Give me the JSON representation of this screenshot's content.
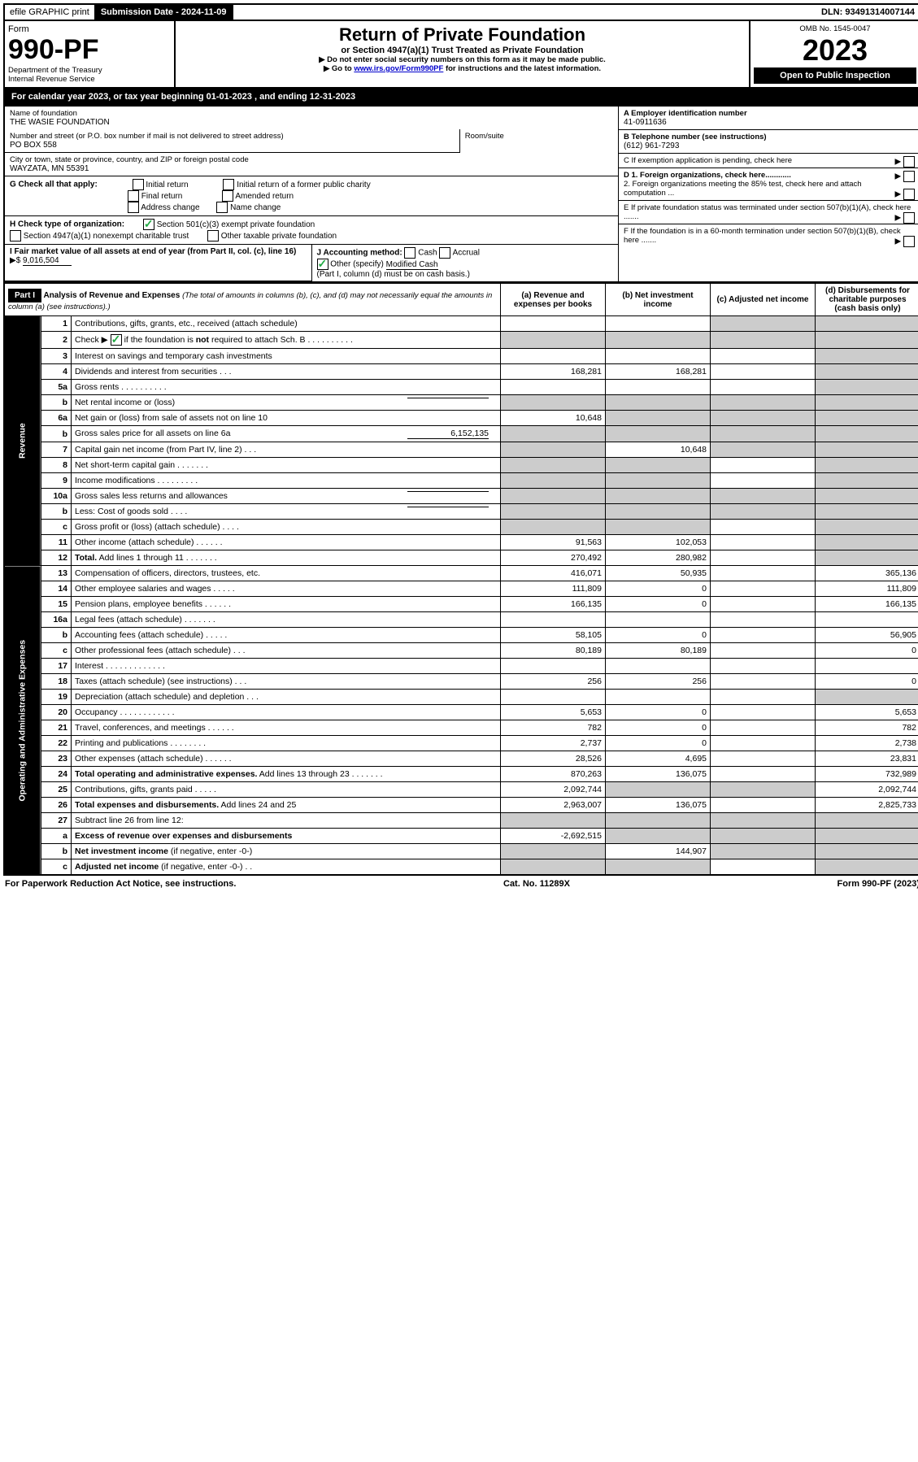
{
  "top": {
    "efile": "efile GRAPHIC print",
    "submission_label": "Submission Date - 2024-11-09",
    "dln": "DLN: 93491314007144"
  },
  "header": {
    "form_label": "Form",
    "form_number": "990-PF",
    "dept": "Department of the Treasury",
    "irs": "Internal Revenue Service",
    "title": "Return of Private Foundation",
    "subtitle": "or Section 4947(a)(1) Trust Treated as Private Foundation",
    "note1": "▶ Do not enter social security numbers on this form as it may be made public.",
    "note2_pre": "▶ Go to ",
    "note2_link": "www.irs.gov/Form990PF",
    "note2_post": " for instructions and the latest information.",
    "omb": "OMB No. 1545-0047",
    "year": "2023",
    "open": "Open to Public Inspection"
  },
  "calyear": "For calendar year 2023, or tax year beginning 01-01-2023               , and ending 12-31-2023",
  "foundation": {
    "name_label": "Name of foundation",
    "name": "THE WASIE FOUNDATION",
    "addr_label": "Number and street (or P.O. box number if mail is not delivered to street address)",
    "addr": "PO BOX 558",
    "room_label": "Room/suite",
    "city_label": "City or town, state or province, country, and ZIP or foreign postal code",
    "city": "WAYZATA, MN  55391"
  },
  "right_info": {
    "a_label": "A Employer identification number",
    "a_val": "41-0911636",
    "b_label": "B Telephone number (see instructions)",
    "b_val": "(612) 961-7293",
    "c_label": "C If exemption application is pending, check here",
    "d1": "D 1. Foreign organizations, check here............",
    "d2": "2. Foreign organizations meeting the 85% test, check here and attach computation ...",
    "e": "E  If private foundation status was terminated under section 507(b)(1)(A), check here .......",
    "f": "F  If the foundation is in a 60-month termination under section 507(b)(1)(B), check here .......",
    "arrow": "▶"
  },
  "g": {
    "label": "G Check all that apply:",
    "opts": [
      "Initial return",
      "Final return",
      "Address change",
      "Initial return of a former public charity",
      "Amended return",
      "Name change"
    ]
  },
  "h": {
    "label": "H Check type of organization:",
    "opt1": "Section 501(c)(3) exempt private foundation",
    "opt2": "Section 4947(a)(1) nonexempt charitable trust",
    "opt3": "Other taxable private foundation"
  },
  "i": {
    "label": "I Fair market value of all assets at end of year (from Part II, col. (c), line 16)",
    "arrow": "▶$",
    "val": "9,016,504"
  },
  "j": {
    "label": "J Accounting method:",
    "cash": "Cash",
    "accrual": "Accrual",
    "other": "Other (specify)",
    "other_val": "Modified Cash",
    "note": "(Part I, column (d) must be on cash basis.)"
  },
  "part1": {
    "label": "Part I",
    "title": "Analysis of Revenue and Expenses",
    "title_note": "(The total of amounts in columns (b), (c), and (d) may not necessarily equal the amounts in column (a) (see instructions).)",
    "col_a": "(a)   Revenue and expenses per books",
    "col_b": "(b)   Net investment income",
    "col_c": "(c)   Adjusted net income",
    "col_d": "(d)   Disbursements for charitable purposes (cash basis only)"
  },
  "side_rev": "Revenue",
  "side_exp": "Operating and Administrative Expenses",
  "rows": [
    {
      "n": "1",
      "d": "shade",
      "a": "",
      "b": "",
      "c": "shade"
    },
    {
      "n": "2",
      "d": "shade",
      "a": "shade",
      "b": "shade",
      "c": "shade",
      "checked": true
    },
    {
      "n": "3",
      "d": "shade",
      "a": "",
      "b": "",
      "c": ""
    },
    {
      "n": "4",
      "d": "shade",
      "a": "168,281",
      "b": "168,281",
      "c": ""
    },
    {
      "n": "5a",
      "d": "shade",
      "a": "",
      "b": "",
      "c": ""
    },
    {
      "n": "b",
      "d": "shade",
      "a": "shade",
      "b": "shade",
      "c": "shade",
      "inline": ""
    },
    {
      "n": "6a",
      "d": "shade",
      "a": "10,648",
      "b": "shade",
      "c": "shade"
    },
    {
      "n": "b",
      "d": "shade",
      "a": "shade",
      "b": "shade",
      "c": "shade",
      "inline": "6,152,135"
    },
    {
      "n": "7",
      "d": "shade",
      "a": "shade",
      "b": "10,648",
      "c": "shade"
    },
    {
      "n": "8",
      "d": "shade",
      "a": "shade",
      "b": "shade",
      "c": ""
    },
    {
      "n": "9",
      "d": "shade",
      "a": "shade",
      "b": "shade",
      "c": ""
    },
    {
      "n": "10a",
      "d": "shade",
      "a": "shade",
      "b": "shade",
      "c": "shade",
      "inline": ""
    },
    {
      "n": "b",
      "d": "shade",
      "a": "shade",
      "b": "shade",
      "c": "shade",
      "inline": ""
    },
    {
      "n": "c",
      "d": "shade",
      "a": "shade",
      "b": "shade",
      "c": ""
    },
    {
      "n": "11",
      "d": "shade",
      "a": "91,563",
      "b": "102,053",
      "c": ""
    },
    {
      "n": "12",
      "d": "shade",
      "a": "270,492",
      "b": "280,982",
      "c": "",
      "bold": true
    }
  ],
  "exp_rows": [
    {
      "n": "13",
      "d": "365,136",
      "a": "416,071",
      "b": "50,935",
      "c": ""
    },
    {
      "n": "14",
      "d": "111,809",
      "a": "111,809",
      "b": "0",
      "c": ""
    },
    {
      "n": "15",
      "d": "166,135",
      "a": "166,135",
      "b": "0",
      "c": ""
    },
    {
      "n": "16a",
      "d": "",
      "a": "",
      "b": "",
      "c": ""
    },
    {
      "n": "b",
      "d": "56,905",
      "a": "58,105",
      "b": "0",
      "c": ""
    },
    {
      "n": "c",
      "d": "0",
      "a": "80,189",
      "b": "80,189",
      "c": ""
    },
    {
      "n": "17",
      "d": "",
      "a": "",
      "b": "",
      "c": ""
    },
    {
      "n": "18",
      "d": "0",
      "a": "256",
      "b": "256",
      "c": ""
    },
    {
      "n": "19",
      "d": "shade",
      "a": "",
      "b": "",
      "c": ""
    },
    {
      "n": "20",
      "d": "5,653",
      "a": "5,653",
      "b": "0",
      "c": ""
    },
    {
      "n": "21",
      "d": "782",
      "a": "782",
      "b": "0",
      "c": ""
    },
    {
      "n": "22",
      "d": "2,738",
      "a": "2,737",
      "b": "0",
      "c": ""
    },
    {
      "n": "23",
      "d": "23,831",
      "a": "28,526",
      "b": "4,695",
      "c": ""
    },
    {
      "n": "24",
      "d": "732,989",
      "a": "870,263",
      "b": "136,075",
      "c": "",
      "bold": true
    },
    {
      "n": "25",
      "d": "2,092,744",
      "a": "2,092,744",
      "b": "shade",
      "c": "shade"
    },
    {
      "n": "26",
      "d": "2,825,733",
      "a": "2,963,007",
      "b": "136,075",
      "c": "",
      "bold": true
    },
    {
      "n": "27",
      "d": "shade",
      "a": "shade",
      "b": "shade",
      "c": "shade"
    },
    {
      "n": "a",
      "d": "shade",
      "a": "-2,692,515",
      "b": "shade",
      "c": "shade",
      "bold": true
    },
    {
      "n": "b",
      "d": "shade",
      "a": "shade",
      "b": "144,907",
      "c": "shade",
      "bold": true
    },
    {
      "n": "c",
      "d": "shade",
      "a": "shade",
      "b": "shade",
      "c": "",
      "bold": true
    }
  ],
  "footer": {
    "left": "For Paperwork Reduction Act Notice, see instructions.",
    "mid": "Cat. No. 11289X",
    "right": "Form 990-PF (2023)"
  }
}
